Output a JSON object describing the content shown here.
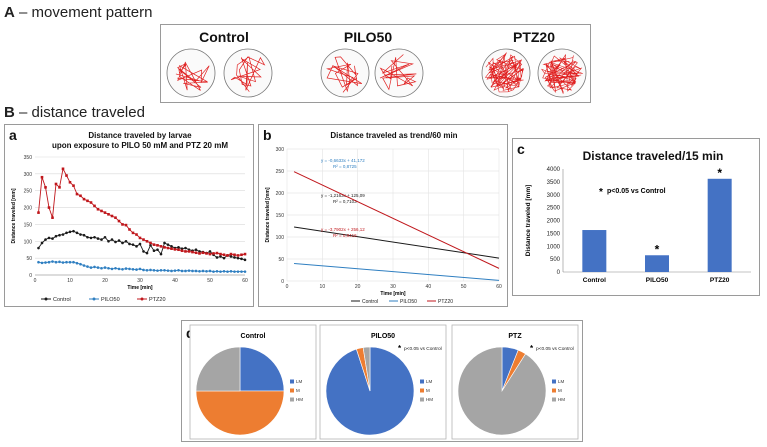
{
  "sections": {
    "a": {
      "letter": "A",
      "dash": " – ",
      "text": "movement pattern"
    },
    "b": {
      "letter": "B",
      "dash": " – ",
      "text": "distance traveled"
    }
  },
  "movement": {
    "groups": [
      {
        "label": "Control",
        "pattern": "sparse"
      },
      {
        "label": "PILO50",
        "pattern": "sparse"
      },
      {
        "label": "PTZ20",
        "pattern": "dense"
      }
    ],
    "trace_color": "#e02020"
  },
  "colors": {
    "control": "#1a1a1a",
    "pilo": "#2f7fc1",
    "ptz": "#c0171c",
    "bar": "#4472c4",
    "lm": "#4472c4",
    "m": "#ed7d31",
    "hm": "#a5a5a5"
  },
  "panels": {
    "a": {
      "letter": "a",
      "title_line1": "Distance traveled by larvae",
      "title_line2": "upon exposure to PILO 50 mM and PTZ 20 mM"
    },
    "b": {
      "letter": "b",
      "title": "Distance traveled as trend/60 min"
    },
    "c": {
      "letter": "c",
      "title": "Distance traveled/15 min",
      "note": "p<0.05 vs Control",
      "star": "*"
    },
    "d": {
      "letter": "d",
      "note": "p<0.05 vs Control"
    }
  },
  "chart_data": [
    {
      "type": "line",
      "panel": "a",
      "xlabel": "Time [min]",
      "ylabel": "Distance traveled [mm]",
      "xlim": [
        0,
        60
      ],
      "ylim": [
        0,
        350
      ],
      "xticks": [
        0,
        10,
        20,
        30,
        40,
        50,
        60
      ],
      "yticks": [
        0,
        50,
        100,
        150,
        200,
        250,
        300,
        350
      ],
      "legend_position": "bottom",
      "x": [
        1,
        2,
        3,
        4,
        5,
        6,
        7,
        8,
        9,
        10,
        11,
        12,
        13,
        14,
        15,
        16,
        17,
        18,
        19,
        20,
        21,
        22,
        23,
        24,
        25,
        26,
        27,
        28,
        29,
        30,
        31,
        32,
        33,
        34,
        35,
        36,
        37,
        38,
        39,
        40,
        41,
        42,
        43,
        44,
        45,
        46,
        47,
        48,
        49,
        50,
        51,
        52,
        53,
        54,
        55,
        56,
        57,
        58,
        59,
        60
      ],
      "series": [
        {
          "name": "Control",
          "color": "#1a1a1a",
          "values": [
            80,
            95,
            105,
            110,
            108,
            115,
            118,
            120,
            125,
            128,
            130,
            125,
            120,
            118,
            112,
            110,
            112,
            108,
            105,
            112,
            100,
            105,
            98,
            102,
            95,
            100,
            92,
            90,
            85,
            92,
            70,
            65,
            88,
            72,
            75,
            62,
            95,
            90,
            85,
            80,
            82,
            78,
            80,
            75,
            72,
            75,
            70,
            68,
            65,
            70,
            60,
            52,
            55,
            50,
            58,
            55,
            52,
            50,
            48,
            45
          ]
        },
        {
          "name": "PILO50",
          "color": "#2f7fc1",
          "values": [
            38,
            36,
            37,
            38,
            40,
            38,
            39,
            37,
            38,
            38,
            38,
            35,
            32,
            28,
            25,
            22,
            24,
            22,
            20,
            22,
            20,
            18,
            20,
            18,
            17,
            19,
            18,
            17,
            16,
            18,
            15,
            14,
            15,
            14,
            13,
            14,
            14,
            13,
            12,
            13,
            14,
            12,
            12,
            13,
            12,
            12,
            11,
            12,
            11,
            12,
            10,
            11,
            10,
            11,
            10,
            11,
            10,
            10,
            10,
            10
          ]
        },
        {
          "name": "PTZ20",
          "color": "#c0171c",
          "values": [
            185,
            290,
            260,
            200,
            170,
            270,
            260,
            315,
            295,
            275,
            265,
            240,
            235,
            225,
            220,
            215,
            205,
            195,
            190,
            185,
            180,
            175,
            170,
            160,
            150,
            148,
            135,
            125,
            120,
            110,
            105,
            100,
            95,
            90,
            88,
            85,
            82,
            80,
            78,
            76,
            75,
            72,
            70,
            70,
            68,
            66,
            64,
            66,
            64,
            62,
            64,
            65,
            62,
            60,
            58,
            62,
            60,
            58,
            60,
            62
          ]
        }
      ]
    },
    {
      "type": "line",
      "panel": "b",
      "xlabel": "Time [min]",
      "ylabel": "Distance traveled [mm]",
      "xlim": [
        0,
        60
      ],
      "ylim": [
        0,
        300
      ],
      "xticks": [
        0,
        10,
        20,
        30,
        40,
        50,
        60
      ],
      "yticks": [
        0,
        50,
        100,
        150,
        200,
        250,
        300
      ],
      "legend_position": "bottom",
      "series": [
        {
          "name": "Control",
          "color": "#1a1a1a",
          "slope": -1.2163,
          "intercept": 125.09,
          "equation": "y = -1,2163x + 125,09",
          "r2": "R² = 0,7103"
        },
        {
          "name": "PILO50",
          "color": "#2f7fc1",
          "slope": -0.6633,
          "intercept": 41.172,
          "equation": "y = -0,6633x + 41,172",
          "r2": "R² = 0,8725"
        },
        {
          "name": "PTZ20",
          "color": "#c0171c",
          "slope": -3.7902,
          "intercept": 256.12,
          "equation": "y = -3,7902x + 256,12",
          "r2": "R² = 0,8416"
        }
      ]
    },
    {
      "type": "bar",
      "panel": "c",
      "ylabel": "Distance traveled [mm]",
      "categories": [
        "Control",
        "PILO50",
        "PTZ20"
      ],
      "values": [
        1630,
        650,
        3620
      ],
      "significant": [
        false,
        true,
        true
      ],
      "ylim": [
        0,
        4000
      ],
      "yticks": [
        0,
        500,
        1000,
        1500,
        2000,
        2500,
        3000,
        3500,
        4000
      ]
    },
    {
      "type": "pie",
      "panel": "d",
      "legend": [
        "LM",
        "M",
        "HM"
      ],
      "pies": [
        {
          "title": "Control",
          "values": [
            25,
            50,
            25
          ],
          "significant": false
        },
        {
          "title": "PILO50",
          "values": [
            95,
            2.5,
            2.5
          ],
          "significant": true
        },
        {
          "title": "PTZ",
          "values": [
            6,
            3,
            91
          ],
          "significant": true
        }
      ]
    }
  ]
}
